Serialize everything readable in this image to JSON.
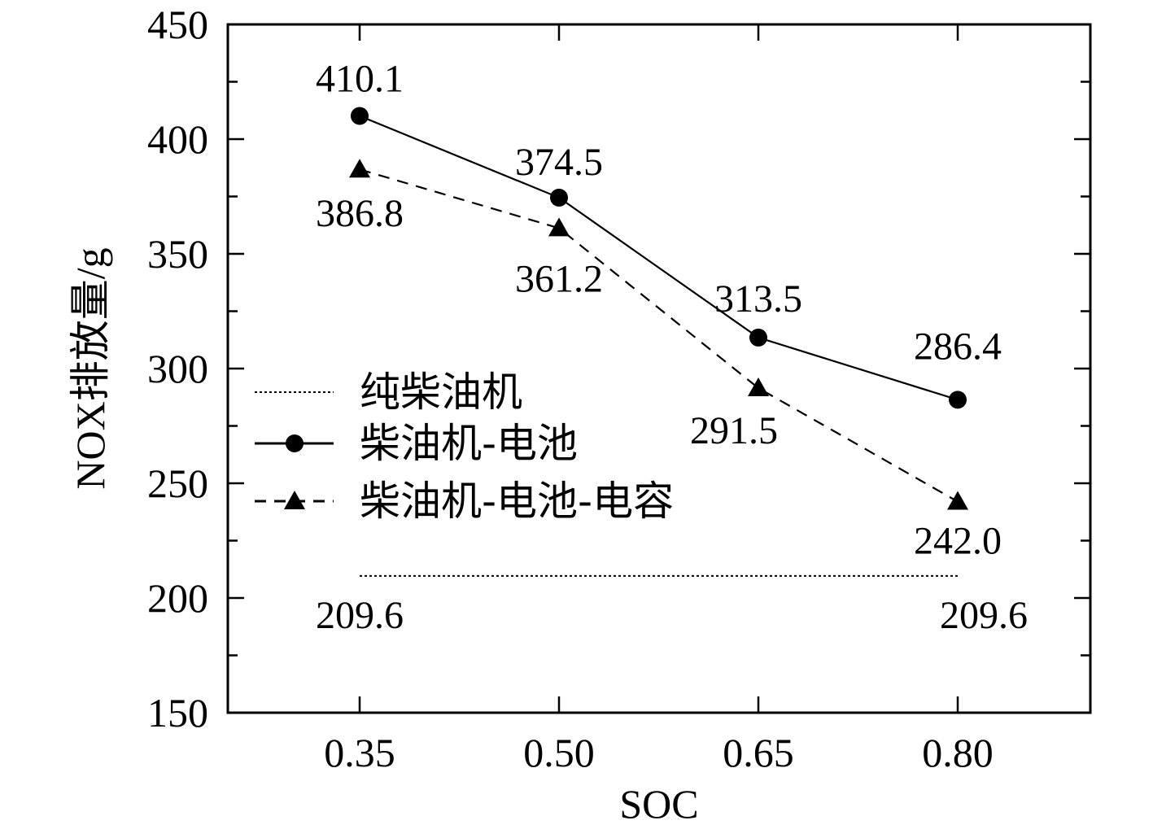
{
  "chart_data": {
    "type": "line",
    "xlabel": "SOC",
    "ylabel": "NOX排放量/g",
    "categories": [
      "0.35",
      "0.50",
      "0.65",
      "0.80"
    ],
    "ylim": [
      150,
      450
    ],
    "yticks": [
      150,
      200,
      250,
      300,
      350,
      400,
      450
    ],
    "grid": false,
    "legend_position": "left-center",
    "series": [
      {
        "name": "纯柴油机",
        "line_style": "dotted",
        "marker": "none",
        "values": [
          209.6,
          209.6,
          209.6,
          209.6
        ],
        "labels": [
          "209.6",
          null,
          null,
          "209.6"
        ]
      },
      {
        "name": "柴油机-电池",
        "line_style": "solid",
        "marker": "circle",
        "values": [
          410.1,
          374.5,
          313.5,
          286.4
        ],
        "labels": [
          "410.1",
          "374.5",
          "313.5",
          "286.4"
        ]
      },
      {
        "name": "柴油机-电池-电容",
        "line_style": "dashed",
        "marker": "triangle",
        "values": [
          386.8,
          361.2,
          291.5,
          242.0
        ],
        "labels": [
          "386.8",
          "361.2",
          "291.5",
          "242.0"
        ]
      }
    ],
    "colors": {
      "line": "#000000",
      "background": "#ffffff"
    }
  }
}
